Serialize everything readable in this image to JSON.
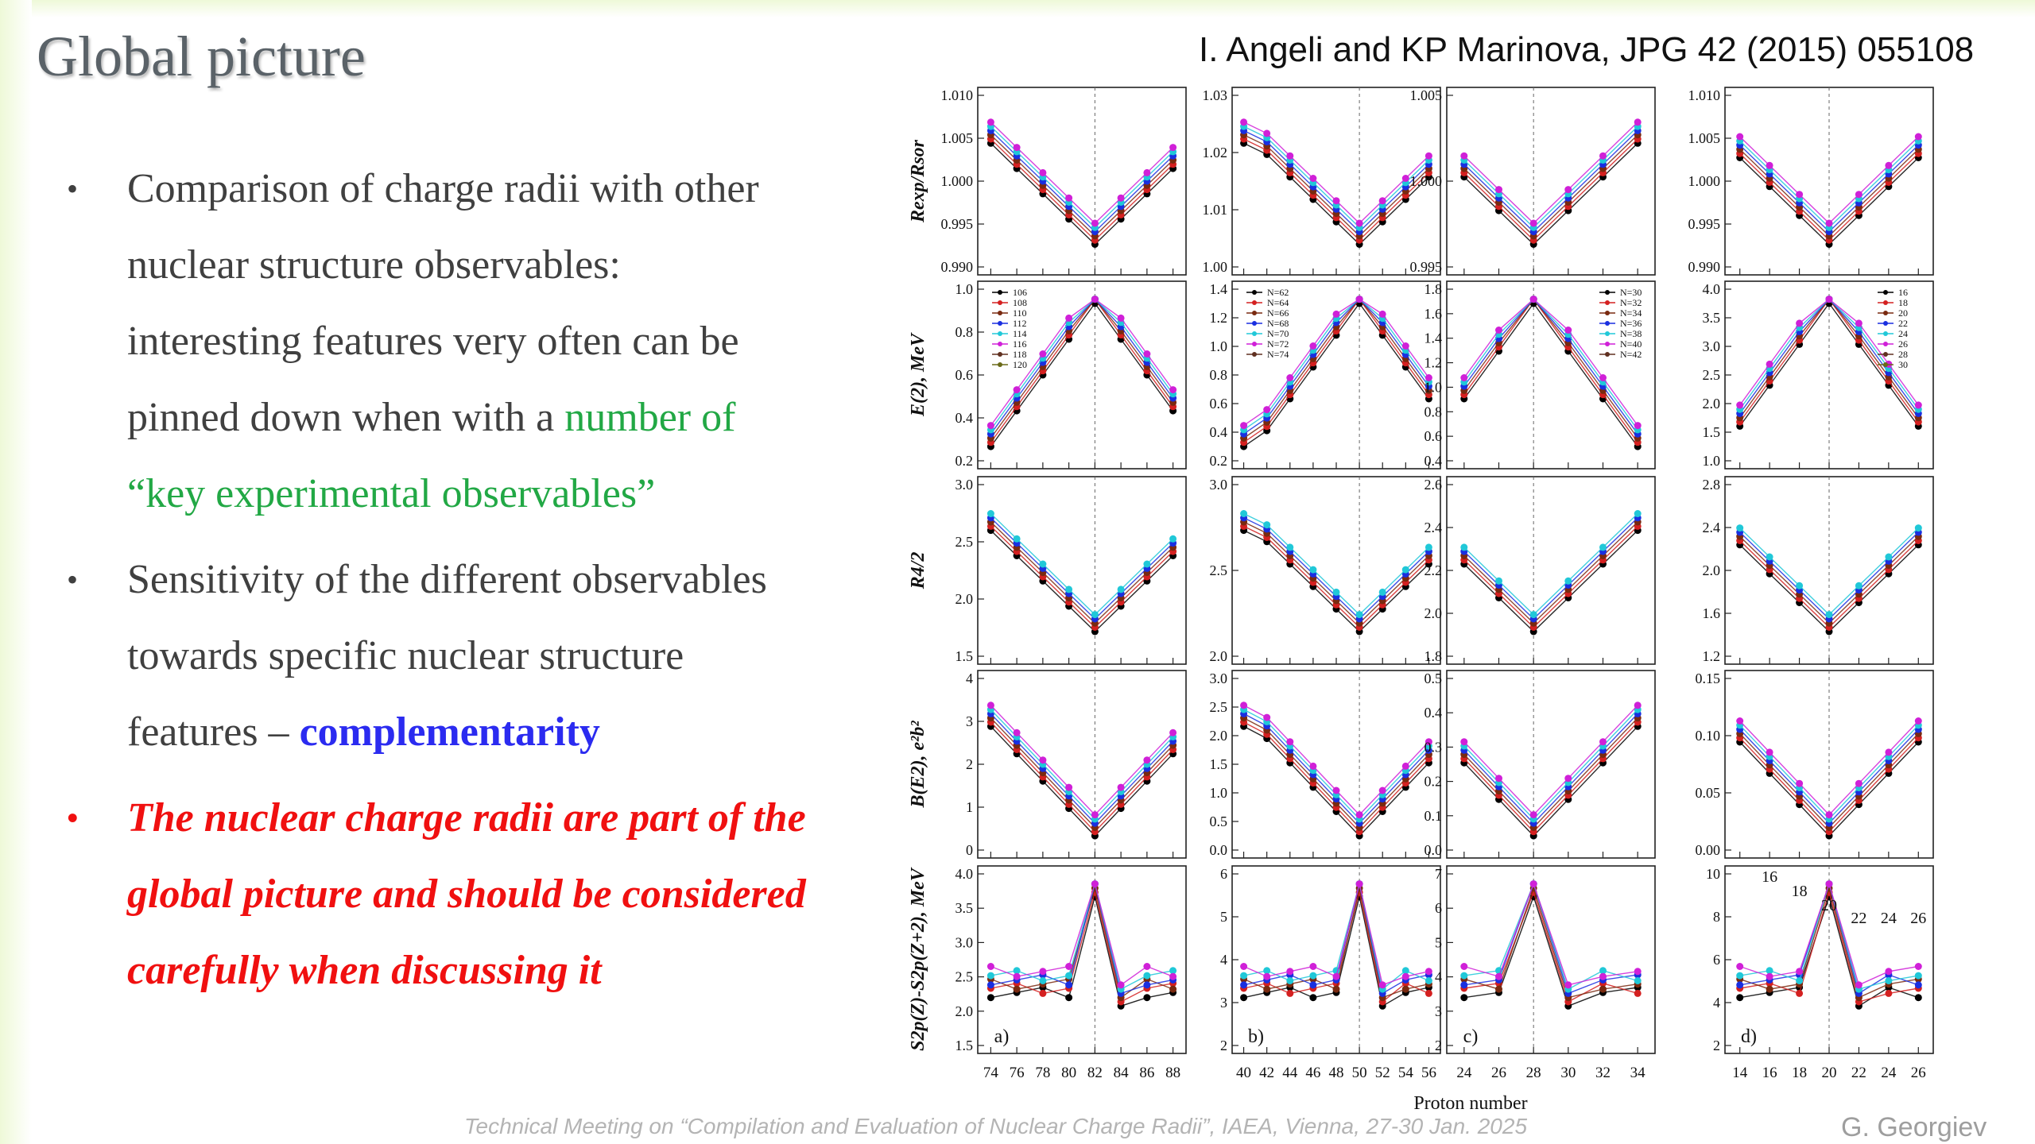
{
  "slide": {
    "title": "Global picture",
    "citation": "I. Angeli and KP Marinova, JPG 42 (2015) 055108",
    "bullets": [
      {
        "line1": "Comparison of charge radii with other",
        "line2": "nuclear structure observables:",
        "line3": "interesting features very often can be",
        "line4a": "pinned down when with a ",
        "line4b": "number of",
        "line5": "“key experimental observables”"
      },
      {
        "line1": "Sensitivity of the different observables",
        "line2": "towards specific nuclear structure",
        "line3a": "features – ",
        "line3b": "complementarity"
      },
      {
        "line1": "The nuclear charge radii are part of the",
        "line2": "global picture and should be considered",
        "line3": "carefully when discussing it"
      }
    ],
    "footer": "Technical Meeting on “Compilation and Evaluation of Nuclear Charge Radii”, IAEA, Vienna, 27-30 Jan. 2025",
    "author": "G. Georgiev",
    "accent_green": "#22a845",
    "accent_blue": "#2b2bf0",
    "accent_red": "#f01010"
  },
  "figure": {
    "xlabel": "Proton number",
    "row_labels": [
      "Rexp/Rsor",
      "E(2), MeV",
      "R4/2",
      "B(E2), e²b²",
      "S2p(Z)-S2p(Z+2), MeV"
    ],
    "panel_labels": [
      "a)",
      "b)",
      "c)",
      "d)"
    ],
    "legends": [
      [
        "106",
        "108",
        "110",
        "112",
        "114",
        "116",
        "118",
        "120"
      ],
      [
        "N=62",
        "N=64",
        "N=66",
        "N=68",
        "N=70",
        "N=72",
        "N=74"
      ],
      [
        "N=30",
        "N=32",
        "N=34",
        "N=36",
        "N=38",
        "N=40",
        "N=42"
      ],
      [
        "16",
        "18",
        "20",
        "22",
        "24",
        "26",
        "28",
        "30"
      ]
    ],
    "d_annotations": [
      "16",
      "18",
      "20",
      "22",
      "24",
      "26"
    ]
  },
  "chart_data": [
    {
      "type": "line",
      "panel": "a",
      "x": [
        74,
        76,
        78,
        80,
        82,
        84,
        86,
        88
      ],
      "xticks": [
        "74",
        "76",
        "78",
        "80",
        "82",
        "84",
        "86",
        "88"
      ],
      "magic_line": 82
    },
    {
      "type": "line",
      "panel": "b",
      "x": [
        40,
        42,
        44,
        46,
        48,
        50,
        52,
        54,
        56
      ],
      "xticks": [
        "40",
        "42",
        "44",
        "46",
        "48",
        "50",
        "52",
        "54",
        "56"
      ],
      "magic_line": 50
    },
    {
      "type": "line",
      "panel": "c",
      "x": [
        24,
        26,
        28,
        30,
        32,
        34
      ],
      "xticks": [
        "24",
        "26",
        "28",
        "30",
        "32",
        "34"
      ],
      "magic_line": 28
    },
    {
      "type": "line",
      "panel": "d",
      "x": [
        14,
        16,
        18,
        20,
        22,
        24,
        26
      ],
      "xticks": [
        "14",
        "16",
        "18",
        "20",
        "22",
        "24",
        "26"
      ],
      "magic_line": 20
    },
    {
      "row": 0,
      "yticks": [
        [
          "1.010",
          "1.005",
          "1.000",
          "0.995",
          "0.990"
        ],
        [
          "1.03",
          "1.02",
          "1.01",
          "1.00"
        ],
        [
          "1.005",
          "1.000",
          "0.995"
        ],
        [
          "1.010",
          "1.005",
          "1.000",
          "0.995",
          "0.990"
        ]
      ]
    },
    {
      "row": 1,
      "yticks": [
        [
          "1.0",
          "0.8",
          "0.6",
          "0.4",
          "0.2"
        ],
        [
          "1.4",
          "1.2",
          "1.0",
          "0.8",
          "0.6",
          "0.4",
          "0.2"
        ],
        [
          "1.8",
          "1.6",
          "1.4",
          "1.2",
          "1.0",
          "0.8",
          "0.6",
          "0.4"
        ],
        [
          "4.0",
          "3.5",
          "3.0",
          "2.5",
          "2.0",
          "1.5",
          "1.0"
        ]
      ]
    },
    {
      "row": 2,
      "yticks": [
        [
          "3.0",
          "2.5",
          "2.0",
          "1.5"
        ],
        [
          "3.0",
          "2.5",
          "2.0"
        ],
        [
          "2.6",
          "2.4",
          "2.2",
          "2.0",
          "1.8"
        ],
        [
          "2.8",
          "2.4",
          "2.0",
          "1.6",
          "1.2"
        ]
      ]
    },
    {
      "row": 3,
      "yticks": [
        [
          "4",
          "3",
          "2",
          "1",
          "0"
        ],
        [
          "3.0",
          "2.5",
          "2.0",
          "1.5",
          "1.0",
          "0.5",
          "0.0"
        ],
        [
          "0.5",
          "0.4",
          "0.3",
          "0.2",
          "0.1",
          "0.0"
        ],
        [
          "0.15",
          "0.10",
          "0.05",
          "0.00"
        ]
      ]
    },
    {
      "row": 4,
      "yticks": [
        [
          "4.0",
          "3.5",
          "3.0",
          "2.5",
          "2.0",
          "1.5"
        ],
        [
          "6",
          "5",
          "4",
          "3",
          "2"
        ],
        [
          "7",
          "6",
          "5",
          "4",
          "3",
          "2"
        ],
        [
          "10",
          "8",
          "6",
          "4",
          "2"
        ]
      ]
    }
  ]
}
